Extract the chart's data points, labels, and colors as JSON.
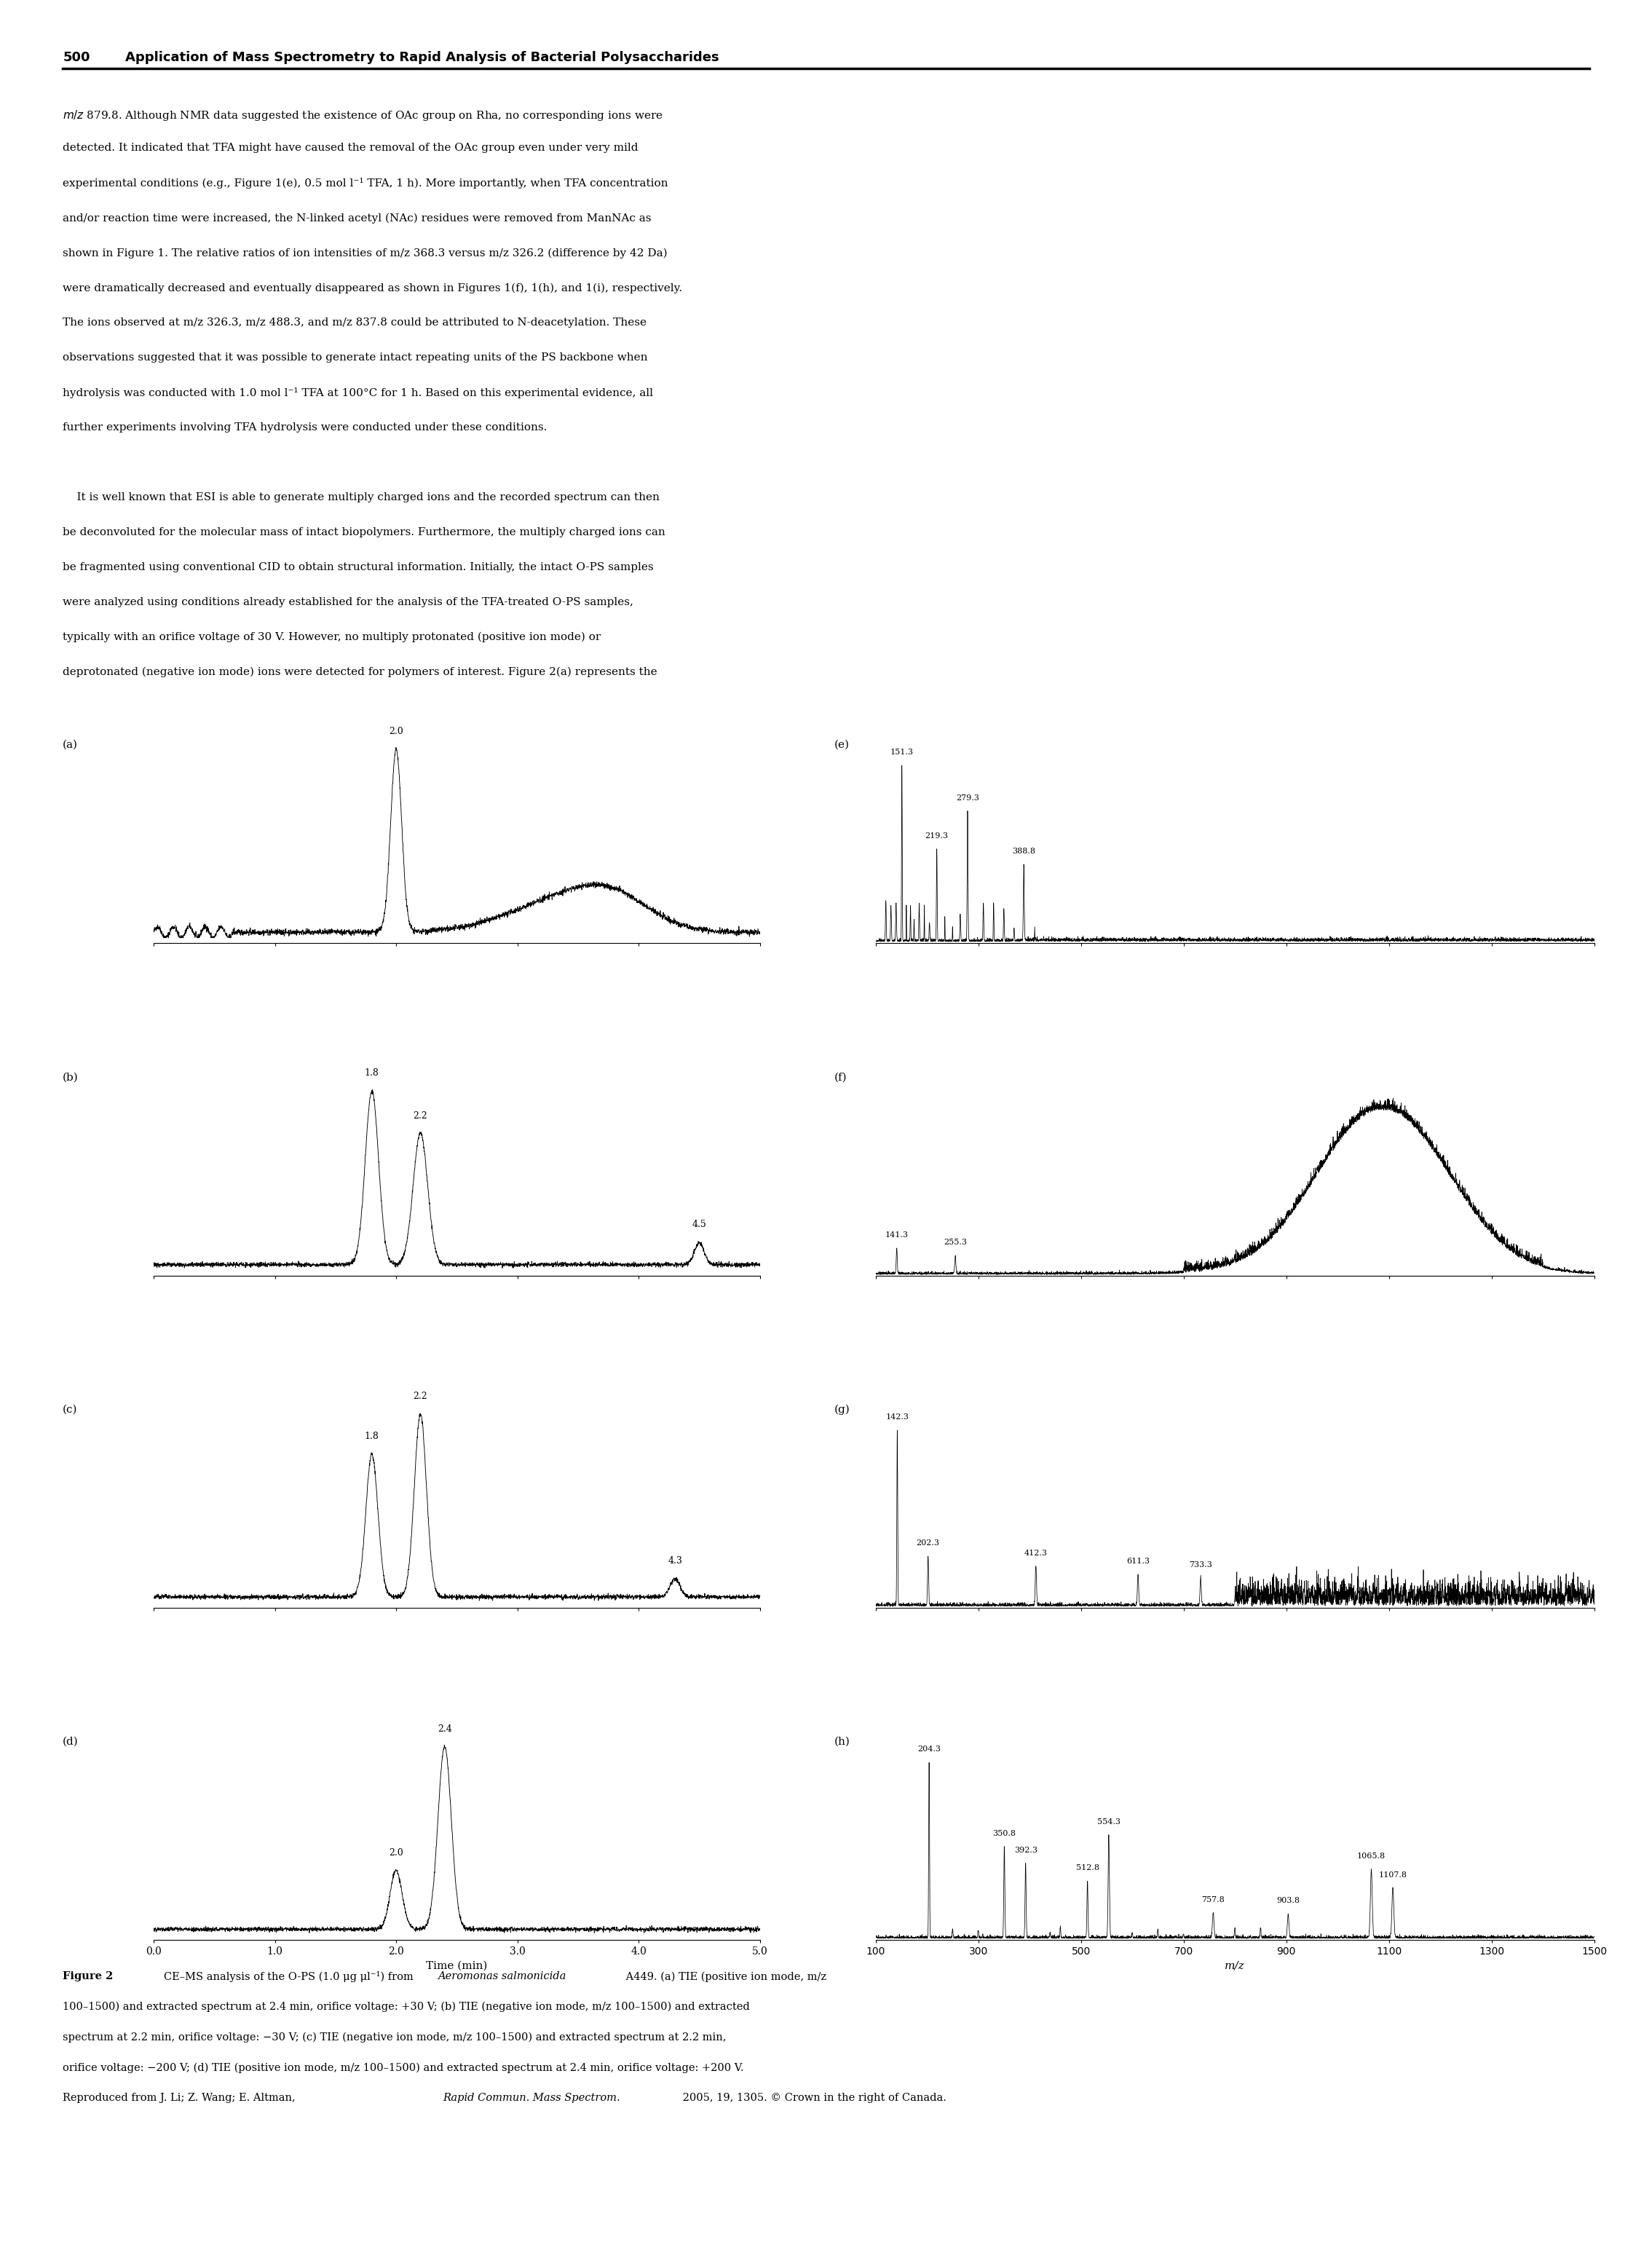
{
  "page_title_num": "500",
  "page_title_text": "Application of Mass Spectrometry to Rapid Analysis of Bacterial Polysaccharides",
  "background_color": "#ffffff",
  "text_color": "#000000",
  "left_panel_labels": [
    "(a)",
    "(b)",
    "(c)",
    "(d)"
  ],
  "right_panel_labels": [
    "(e)",
    "(f)",
    "(g)",
    "(h)"
  ],
  "time_xlim": [
    0.0,
    5.0
  ],
  "time_xticks": [
    0.0,
    1.0,
    2.0,
    3.0,
    4.0,
    5.0
  ],
  "time_xticklabels": [
    "0.0",
    "1.0",
    "2.0",
    "3.0",
    "4.0",
    "5.0"
  ],
  "mz_xlim": [
    100,
    1500
  ],
  "mz_xticks": [
    100,
    300,
    500,
    700,
    900,
    1100,
    1300,
    1500
  ],
  "time_xlabel": "Time (min)",
  "mz_xlabel": "m/z",
  "body_para1": "m/z 879.8. Although NMR data suggested the existence of OAc group on Rha, no corresponding ions were detected. It indicated that TFA might have caused the removal of the OAc group even under very mild experimental conditions (e.g., Figure 1(e), 0.5 mol l⁻¹ TFA, 1 h). More importantly, when TFA concentration and/or reaction time were increased, the N-linked acetyl (NAc) residues were removed from ManNAc as shown in Figure 1. The relative ratios of ion intensities of m/z 368.3 versus m/z 326.2 (difference by 42 Da) were dramatically decreased and eventually disappeared as shown in Figures 1(f), 1(h), and 1(i), respectively. The ions observed at m/z 326.3, m/z 488.3, and m/z 837.8 could be attributed to N-deacetylation. These observations suggested that it was possible to generate intact repeating units of the PS backbone when hydrolysis was conducted with 1.0 mol l⁻¹ TFA at 100°C for 1 h. Based on this experimental evidence, all further experiments involving TFA hydrolysis were conducted under these conditions.",
  "body_para2": "It is well known that ESI is able to generate multiply charged ions and the recorded spectrum can then be deconvoluted for the molecular mass of intact biopolymers. Furthermore, the multiply charged ions can be fragmented using conventional CID to obtain structural information. Initially, the intact O-PS samples were analyzed using conditions already established for the analysis of the TFA-treated O-PS samples, typically with an orifice voltage of 30 V. However, no multiply protonated (positive ion mode) or deprotonated (negative ion mode) ions were detected for polymers of interest. Figure 2(a) represents the"
}
